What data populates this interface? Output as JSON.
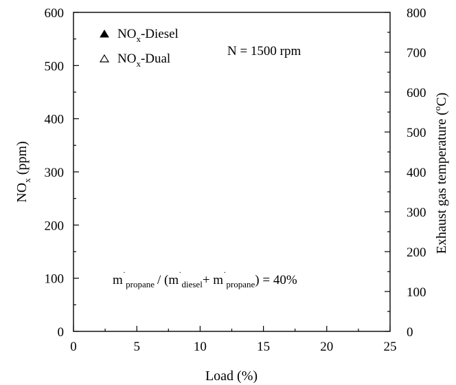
{
  "chart_data": {
    "type": "scatter",
    "title": "",
    "xlabel": "Load (%)",
    "ylabel": {
      "main": "NO",
      "sub": "x",
      "units": " (ppm)"
    },
    "y2label": {
      "main": "Exhaust gas temperature (",
      "sup": "o",
      "units": "C)"
    },
    "xlim": [
      0,
      25
    ],
    "ylim": [
      0,
      600
    ],
    "y2lim": [
      0,
      800
    ],
    "xticks": [
      0,
      5,
      10,
      15,
      20,
      25
    ],
    "yticks": [
      0,
      100,
      200,
      300,
      400,
      500,
      600
    ],
    "y2ticks": [
      0,
      100,
      200,
      300,
      400,
      500,
      600,
      700,
      800
    ],
    "grid": false,
    "legend_position": "top-left",
    "series": [
      {
        "name": {
          "main": "NO",
          "sub": "x",
          "rest": "-Diesel"
        },
        "marker": "filled-triangle",
        "x": [],
        "y": []
      },
      {
        "name": {
          "main": "NO",
          "sub": "x",
          "rest": "-Dual"
        },
        "marker": "open-triangle",
        "x": [],
        "y": []
      }
    ],
    "annotations": {
      "speed": "N = 1500 rpm",
      "ratio": {
        "m1": "m",
        "dot1": "˙",
        "s1": "propane",
        "mid": "/ (m",
        "dot2": "˙",
        "s2": "diesel",
        "plus": "+ m",
        "dot3": "˙",
        "s3": "propane",
        "end": ") = 40%"
      }
    }
  }
}
